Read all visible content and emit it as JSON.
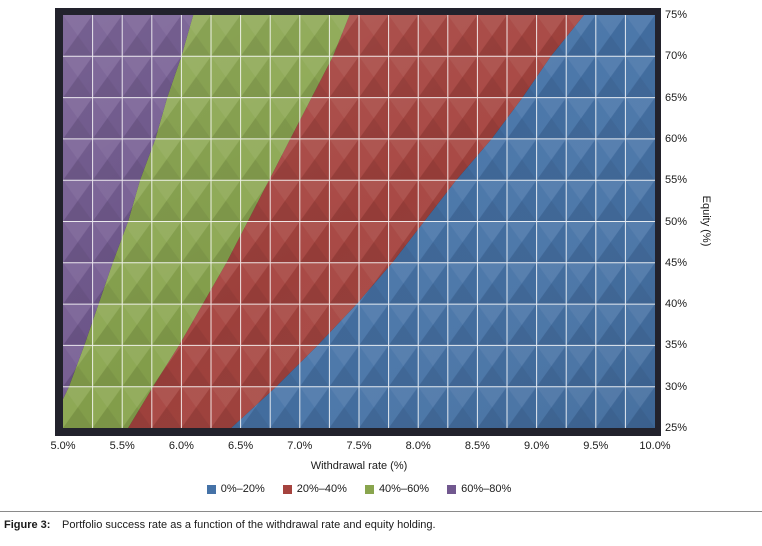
{
  "chart_data": {
    "type": "contour",
    "title": "",
    "xlabel": "Withdrawal rate (%)",
    "ylabel": "Equity (%)",
    "xlim": [
      5.0,
      10.0
    ],
    "ylim": [
      25,
      75
    ],
    "x_ticks": [
      "5.0%",
      "5.5%",
      "6.0%",
      "6.5%",
      "7.0%",
      "7.5%",
      "8.0%",
      "8.5%",
      "9.0%",
      "9.5%",
      "10.0%"
    ],
    "y_ticks": [
      "25%",
      "30%",
      "35%",
      "40%",
      "45%",
      "50%",
      "55%",
      "60%",
      "65%",
      "70%",
      "75%"
    ],
    "grid": {
      "x_divisions": 20,
      "y_divisions": 10,
      "line_color": "#ffffff"
    },
    "frame_color": "#22222C",
    "legend_position": "bottom",
    "units": {
      "x": "withdrawal rate (%)",
      "y": "equity (%)",
      "z": "portfolio success rate band"
    },
    "bands": [
      {
        "label": "0%–20%",
        "color": "#4572A7",
        "region": "lower-right"
      },
      {
        "label": "20%–40%",
        "color": "#A5433E",
        "region": "middle-diagonal"
      },
      {
        "label": "40%–60%",
        "color": "#89A54E",
        "region": "upper-middle-diagonal"
      },
      {
        "label": "60%–80%",
        "color": "#71588F",
        "region": "upper-left"
      }
    ],
    "contours": {
      "level_60_pct": [
        [
          6.1,
          75
        ],
        [
          6.0,
          70
        ],
        [
          5.88,
          65
        ],
        [
          5.78,
          60
        ],
        [
          5.65,
          55
        ],
        [
          5.55,
          50
        ],
        [
          5.42,
          45
        ],
        [
          5.3,
          40
        ],
        [
          5.18,
          35
        ],
        [
          5.05,
          30
        ],
        [
          5.0,
          28.5
        ]
      ],
      "level_40_pct": [
        [
          7.42,
          75
        ],
        [
          7.28,
          70
        ],
        [
          7.1,
          65
        ],
        [
          6.92,
          60
        ],
        [
          6.74,
          55
        ],
        [
          6.56,
          50
        ],
        [
          6.38,
          45
        ],
        [
          6.18,
          40
        ],
        [
          5.98,
          35
        ],
        [
          5.76,
          30
        ],
        [
          5.55,
          25
        ]
      ],
      "level_20_pct": [
        [
          9.4,
          75
        ],
        [
          9.12,
          70
        ],
        [
          8.88,
          65
        ],
        [
          8.62,
          60
        ],
        [
          8.32,
          55
        ],
        [
          8.05,
          50
        ],
        [
          7.78,
          45
        ],
        [
          7.48,
          40
        ],
        [
          7.15,
          35
        ],
        [
          6.8,
          30
        ],
        [
          6.42,
          25
        ]
      ]
    }
  },
  "caption": {
    "label": "Figure 3:",
    "text": "Portfolio success rate as a function of the withdrawal rate and equity holding."
  }
}
